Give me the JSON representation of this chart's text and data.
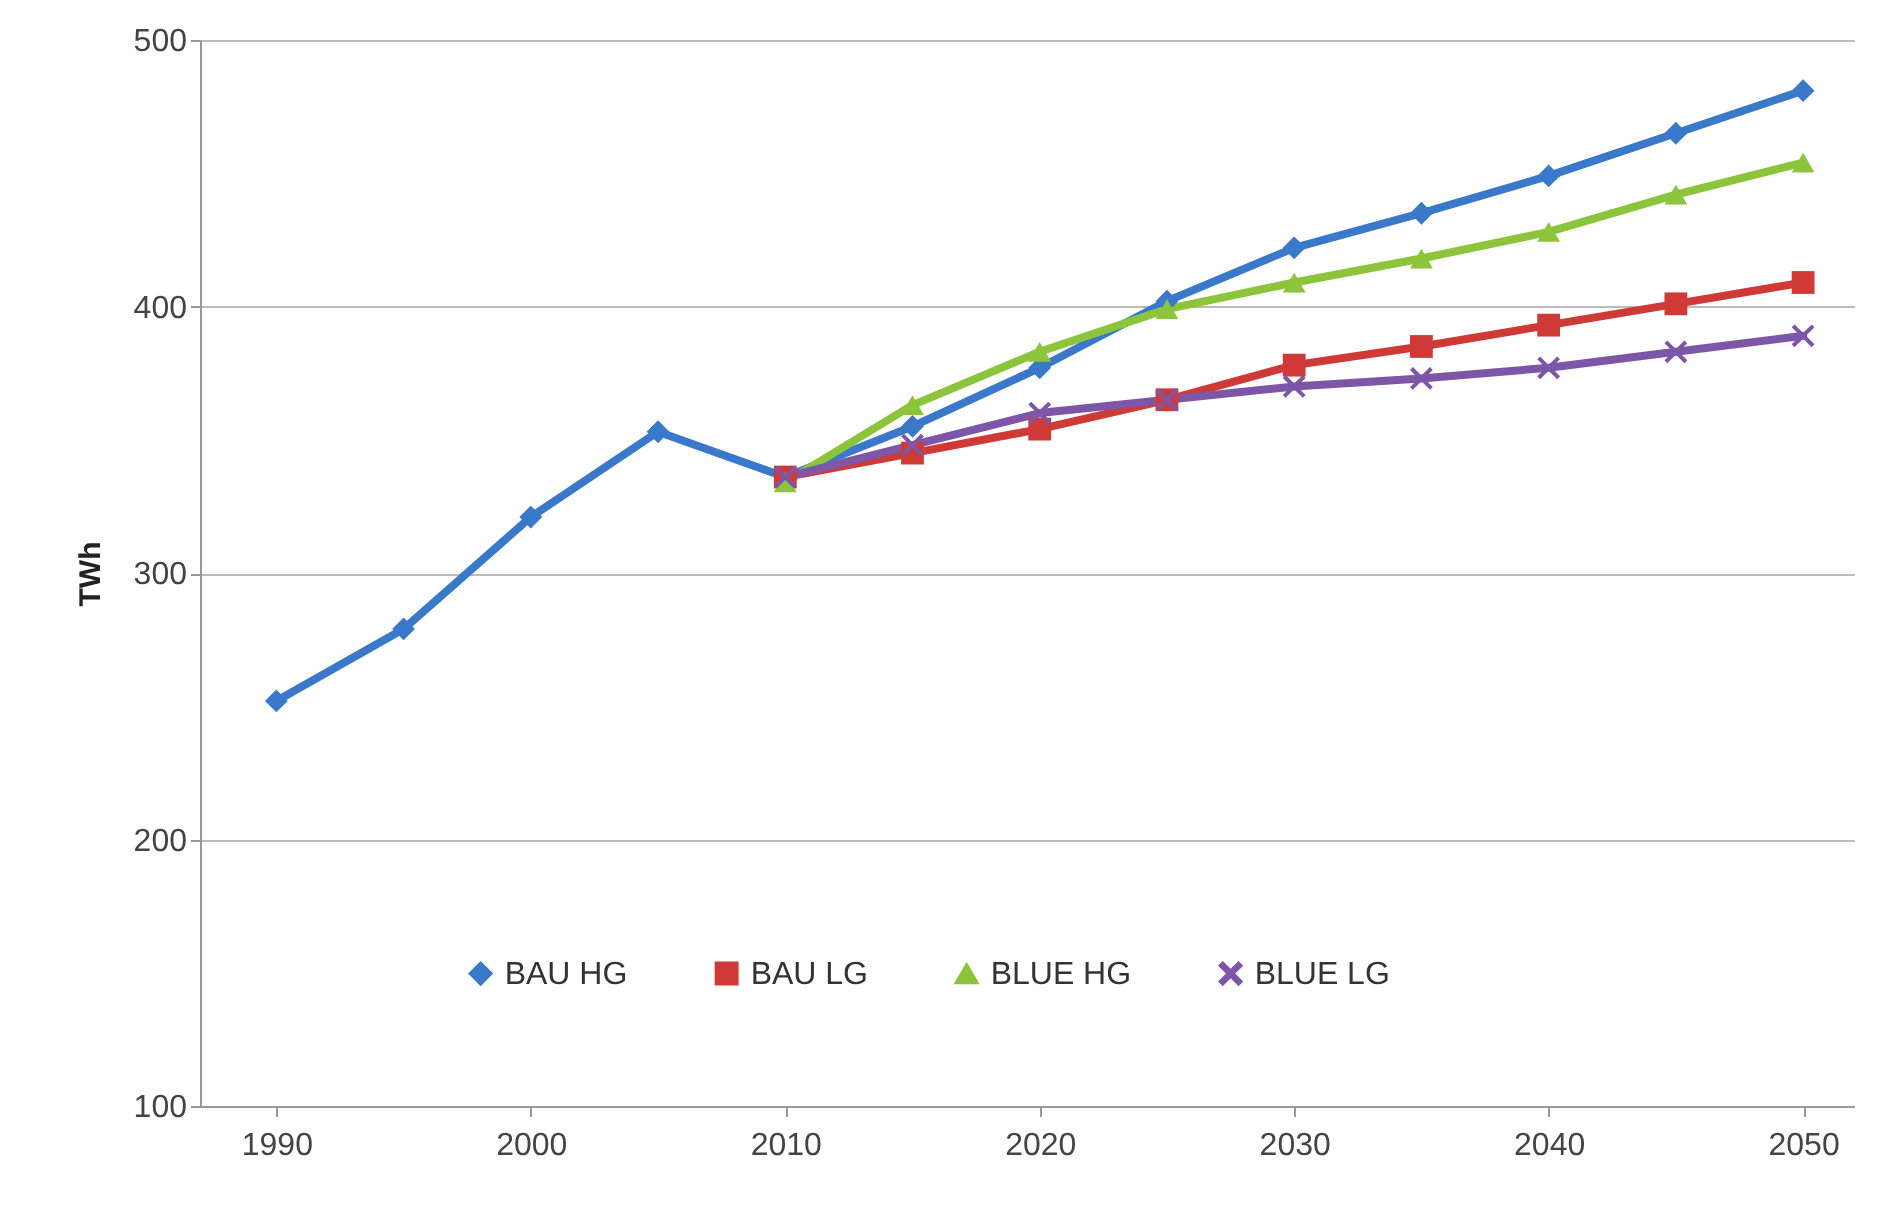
{
  "chart_data": {
    "type": "line",
    "ylabel": "TWh",
    "xlim": [
      1987,
      2052
    ],
    "xticks": [
      1990,
      2000,
      2010,
      2020,
      2030,
      2040,
      2050
    ],
    "ylim": [
      100,
      500
    ],
    "yticks": [
      100,
      200,
      300,
      400,
      500
    ],
    "grid": "y",
    "legend": "bottom",
    "line_style": "solid",
    "series": [
      {
        "name": "BAU HG",
        "color": "#3a78c9",
        "marker": "diamond",
        "x": [
          1990,
          1995,
          2000,
          2005,
          2010,
          2015,
          2020,
          2025,
          2030,
          2035,
          2040,
          2045,
          2050
        ],
        "values": [
          252,
          279,
          321,
          353,
          336,
          355,
          377,
          402,
          422,
          435,
          449,
          465,
          481
        ]
      },
      {
        "name": "BAU LG",
        "color": "#d03a36",
        "marker": "square",
        "x": [
          2010,
          2015,
          2020,
          2025,
          2030,
          2035,
          2040,
          2045,
          2050
        ],
        "values": [
          336,
          345,
          354,
          365,
          378,
          385,
          393,
          401,
          409
        ]
      },
      {
        "name": "BLUE HG",
        "color": "#8cc43c",
        "marker": "triangle",
        "x": [
          2010,
          2015,
          2020,
          2025,
          2030,
          2035,
          2040,
          2045,
          2050
        ],
        "values": [
          334,
          363,
          383,
          399,
          409,
          418,
          428,
          442,
          454
        ]
      },
      {
        "name": "BLUE LG",
        "color": "#7e56a8",
        "marker": "cross",
        "x": [
          2010,
          2015,
          2020,
          2025,
          2030,
          2035,
          2040,
          2045,
          2050
        ],
        "values": [
          336,
          348,
          360,
          365,
          370,
          373,
          377,
          383,
          389
        ]
      }
    ]
  }
}
